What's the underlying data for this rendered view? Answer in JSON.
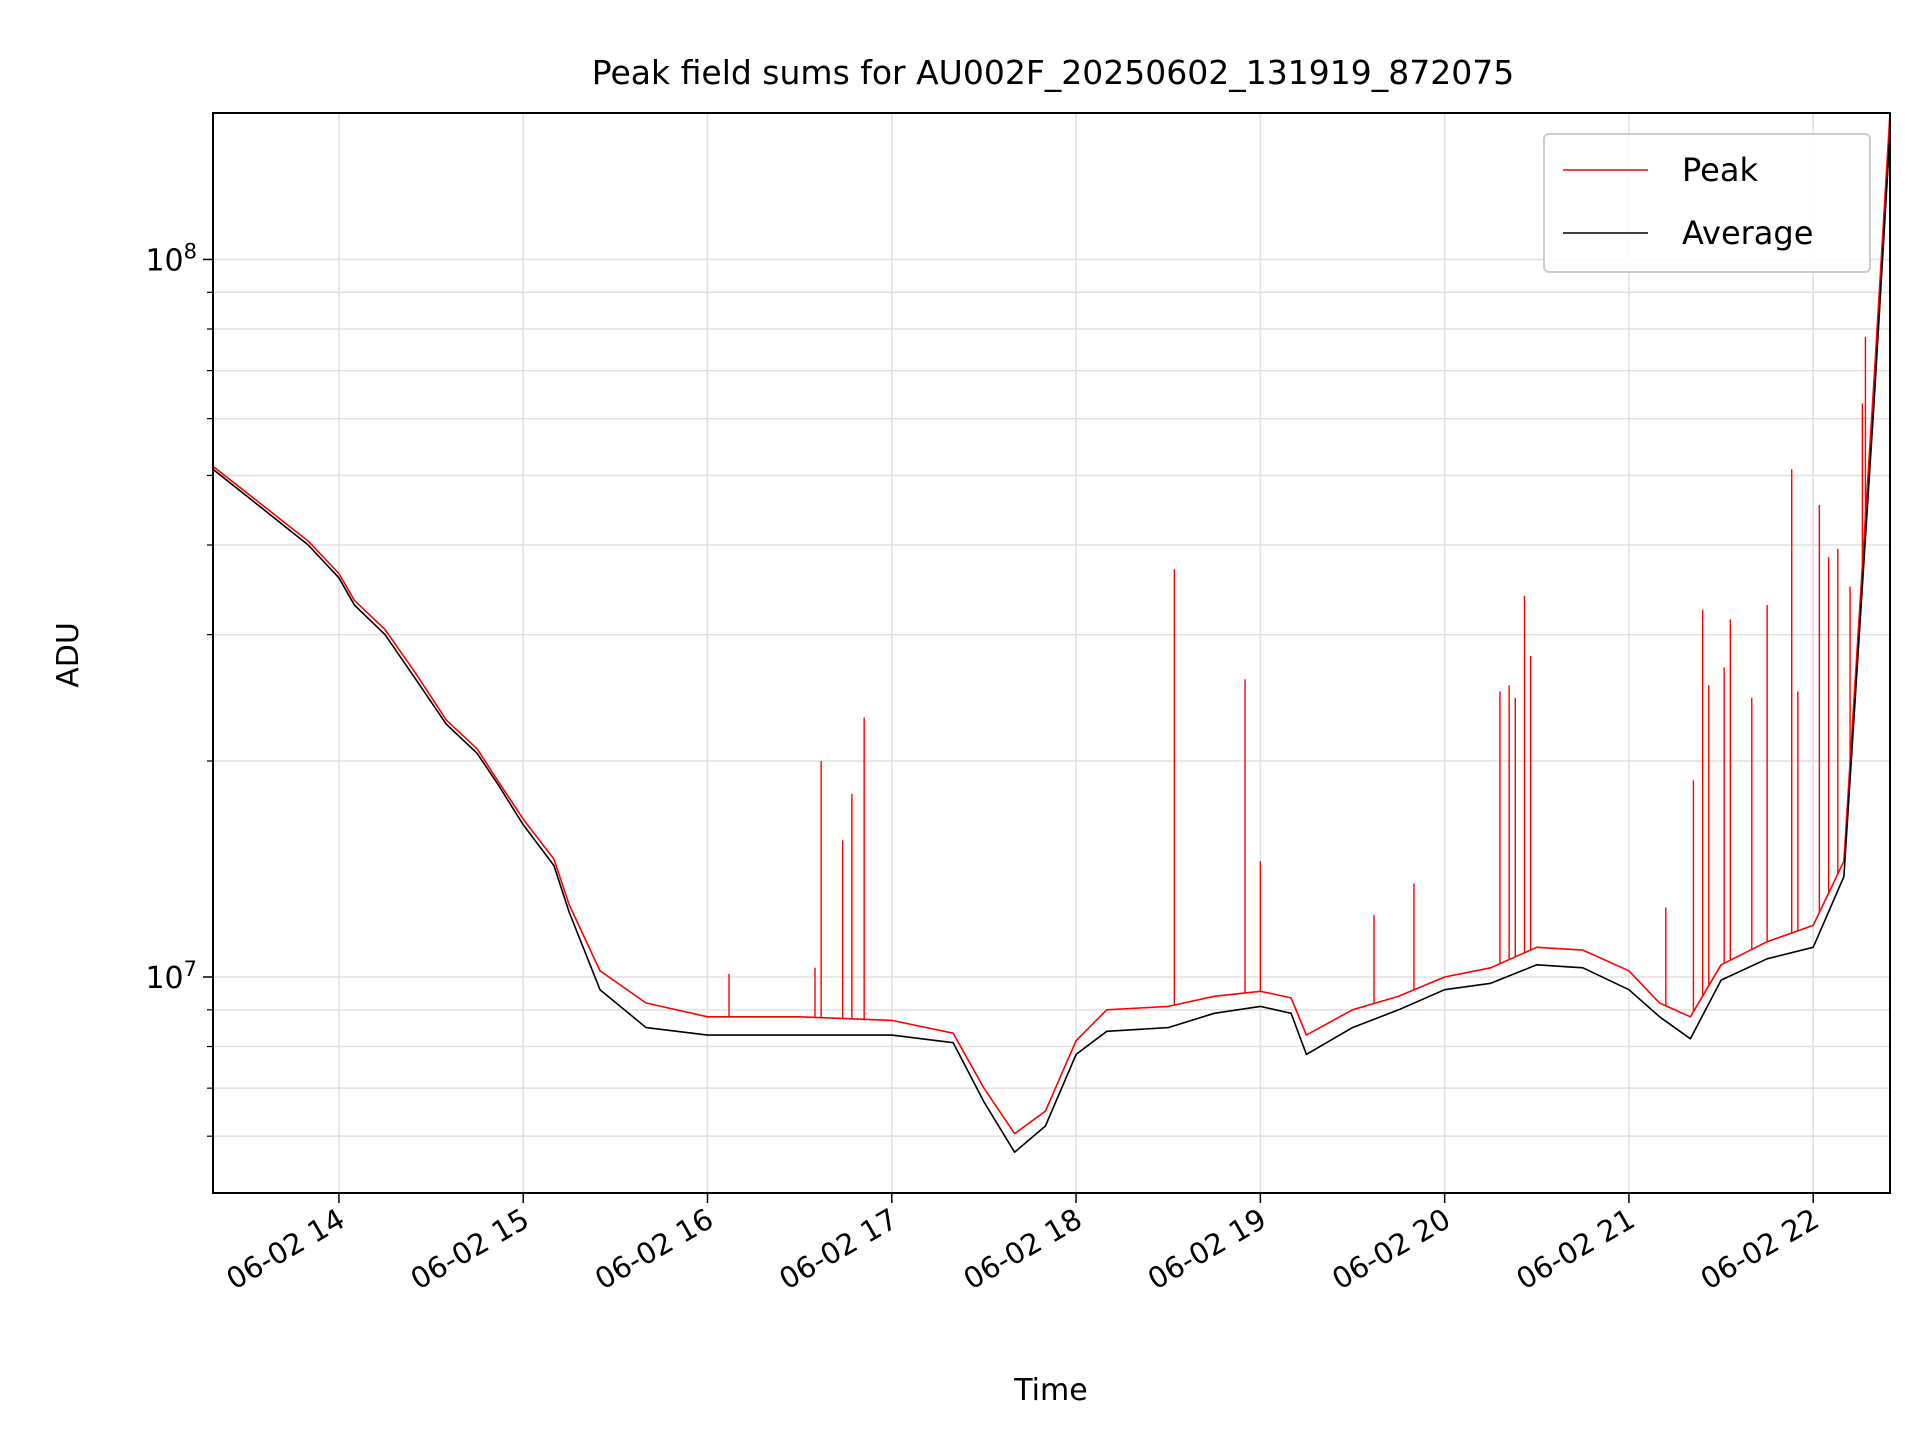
{
  "chart_data": {
    "type": "line",
    "title": "Peak field sums for AU002F_20250602_131919_872075",
    "xlabel": "Time",
    "ylabel": "ADU",
    "yscale": "log",
    "grid": true,
    "legend_position": "top-right",
    "xlim": [
      "2025-06-02 13:19",
      "2025-06-02 22:25"
    ],
    "ylim": [
      5000000,
      160000000
    ],
    "x_ticks": [
      {
        "time": "2025-06-02 14:00",
        "label": "06-02 14"
      },
      {
        "time": "2025-06-02 15:00",
        "label": "06-02 15"
      },
      {
        "time": "2025-06-02 16:00",
        "label": "06-02 16"
      },
      {
        "time": "2025-06-02 17:00",
        "label": "06-02 17"
      },
      {
        "time": "2025-06-02 18:00",
        "label": "06-02 18"
      },
      {
        "time": "2025-06-02 19:00",
        "label": "06-02 19"
      },
      {
        "time": "2025-06-02 20:00",
        "label": "06-02 20"
      },
      {
        "time": "2025-06-02 21:00",
        "label": "06-02 21"
      },
      {
        "time": "2025-06-02 22:00",
        "label": "06-02 22"
      }
    ],
    "y_ticks": [
      {
        "value": 10000000,
        "base": "10",
        "exp": "7"
      },
      {
        "value": 100000000,
        "base": "10",
        "exp": "8"
      }
    ],
    "x": [
      "2025-06-02 13:19",
      "2025-06-02 13:35",
      "2025-06-02 13:50",
      "2025-06-02 14:00",
      "2025-06-02 14:05",
      "2025-06-02 14:15",
      "2025-06-02 14:25",
      "2025-06-02 14:35",
      "2025-06-02 14:45",
      "2025-06-02 14:52",
      "2025-06-02 15:00",
      "2025-06-02 15:10",
      "2025-06-02 15:15",
      "2025-06-02 15:25",
      "2025-06-02 15:40",
      "2025-06-02 16:00",
      "2025-06-02 16:30",
      "2025-06-02 17:00",
      "2025-06-02 17:20",
      "2025-06-02 17:30",
      "2025-06-02 17:40",
      "2025-06-02 17:50",
      "2025-06-02 18:00",
      "2025-06-02 18:10",
      "2025-06-02 18:30",
      "2025-06-02 18:45",
      "2025-06-02 19:00",
      "2025-06-02 19:10",
      "2025-06-02 19:15",
      "2025-06-02 19:30",
      "2025-06-02 19:45",
      "2025-06-02 20:00",
      "2025-06-02 20:15",
      "2025-06-02 20:30",
      "2025-06-02 20:45",
      "2025-06-02 21:00",
      "2025-06-02 21:10",
      "2025-06-02 21:20",
      "2025-06-02 21:30",
      "2025-06-02 21:45",
      "2025-06-02 22:00",
      "2025-06-02 22:10",
      "2025-06-02 22:20",
      "2025-06-02 22:25"
    ],
    "series": [
      {
        "name": "Peak",
        "color": "#ff0000",
        "values": [
          51500000,
          45500000,
          40500000,
          36500000,
          33500000,
          30500000,
          26500000,
          22800000,
          20800000,
          18700000,
          16600000,
          14600000,
          12600000,
          10200000,
          9200000,
          8800000,
          8800000,
          8700000,
          8350000,
          7000000,
          6050000,
          6500000,
          8150000,
          9000000,
          9100000,
          9400000,
          9550000,
          9350000,
          8300000,
          9000000,
          9400000,
          10000000,
          10300000,
          11000000,
          10900000,
          10200000,
          9200000,
          8800000,
          10400000,
          11200000,
          11800000,
          14500000,
          70000000,
          160000000
        ],
        "spikes": [
          {
            "time": "2025-06-02 16:07",
            "value": 10100000
          },
          {
            "time": "2025-06-02 16:35",
            "value": 10300000
          },
          {
            "time": "2025-06-02 16:37",
            "value": 20000000
          },
          {
            "time": "2025-06-02 16:44",
            "value": 15500000
          },
          {
            "time": "2025-06-02 16:47",
            "value": 18000000
          },
          {
            "time": "2025-06-02 16:51",
            "value": 23000000
          },
          {
            "time": "2025-06-02 18:32",
            "value": 37000000
          },
          {
            "time": "2025-06-02 18:55",
            "value": 26000000
          },
          {
            "time": "2025-06-02 19:00",
            "value": 14500000
          },
          {
            "time": "2025-06-02 19:37",
            "value": 12200000
          },
          {
            "time": "2025-06-02 19:50",
            "value": 13500000
          },
          {
            "time": "2025-06-02 20:18",
            "value": 25000000
          },
          {
            "time": "2025-06-02 20:21",
            "value": 25500000
          },
          {
            "time": "2025-06-02 20:23",
            "value": 24500000
          },
          {
            "time": "2025-06-02 20:26",
            "value": 34000000
          },
          {
            "time": "2025-06-02 20:28",
            "value": 28000000
          },
          {
            "time": "2025-06-02 21:12",
            "value": 12500000
          },
          {
            "time": "2025-06-02 21:21",
            "value": 18800000
          },
          {
            "time": "2025-06-02 21:24",
            "value": 32500000
          },
          {
            "time": "2025-06-02 21:26",
            "value": 25500000
          },
          {
            "time": "2025-06-02 21:31",
            "value": 27000000
          },
          {
            "time": "2025-06-02 21:33",
            "value": 31500000
          },
          {
            "time": "2025-06-02 21:40",
            "value": 24500000
          },
          {
            "time": "2025-06-02 21:45",
            "value": 33000000
          },
          {
            "time": "2025-06-02 21:53",
            "value": 51000000
          },
          {
            "time": "2025-06-02 21:55",
            "value": 25000000
          },
          {
            "time": "2025-06-02 22:02",
            "value": 45500000
          },
          {
            "time": "2025-06-02 22:05",
            "value": 38500000
          },
          {
            "time": "2025-06-02 22:08",
            "value": 39500000
          },
          {
            "time": "2025-06-02 22:12",
            "value": 35000000
          },
          {
            "time": "2025-06-02 22:16",
            "value": 63000000
          },
          {
            "time": "2025-06-02 22:17",
            "value": 78000000
          }
        ]
      },
      {
        "name": "Average",
        "color": "#000000",
        "values": [
          51000000,
          45000000,
          40000000,
          36000000,
          33000000,
          30000000,
          26000000,
          22500000,
          20500000,
          18500000,
          16300000,
          14300000,
          12300000,
          9600000,
          8500000,
          8300000,
          8300000,
          8300000,
          8100000,
          6700000,
          5700000,
          6200000,
          7800000,
          8400000,
          8500000,
          8900000,
          9100000,
          8900000,
          7800000,
          8500000,
          9000000,
          9600000,
          9800000,
          10400000,
          10300000,
          9600000,
          8800000,
          8200000,
          9900000,
          10600000,
          11000000,
          13800000,
          65000000,
          150000000
        ]
      }
    ]
  }
}
